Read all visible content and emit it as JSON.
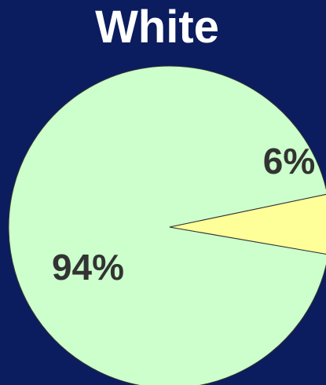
{
  "chart_data": {
    "type": "pie",
    "title": "White",
    "slices": [
      {
        "label": "94%",
        "value": 94,
        "color": "#ccffcc"
      },
      {
        "label": "6%",
        "value": 6,
        "color": "#ffff99"
      }
    ],
    "legend": "none"
  },
  "colors": {
    "background": "#0b1d5e",
    "title": "#ffffff",
    "label": "#333333",
    "slice_stroke": "#333333"
  }
}
